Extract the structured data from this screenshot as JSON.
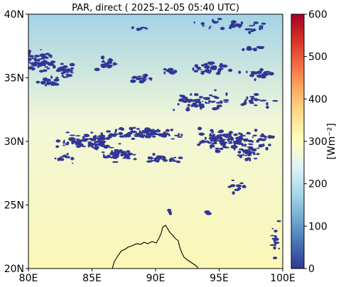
{
  "title": "PAR, direct ( 2025-12-05 05:40 UTC)",
  "map": {
    "lon_range": [
      80,
      100
    ],
    "lat_range": [
      20,
      40
    ],
    "x_ticks": [
      "80E",
      "85E",
      "90E",
      "95E",
      "100E"
    ],
    "y_ticks": [
      "40N",
      "35N",
      "30N",
      "25N",
      "20N"
    ],
    "grid": false
  },
  "colorbar": {
    "label": "[Wm⁻²]",
    "ticks": [
      "600",
      "500",
      "400",
      "300",
      "200",
      "100",
      "0"
    ],
    "range": [
      0,
      600
    ],
    "colormap": "RdYlBu_r",
    "colors": [
      "#313695",
      "#4575b4",
      "#74add1",
      "#abd9e9",
      "#e0f3f8",
      "#ffffbf",
      "#fee090",
      "#fdae61",
      "#f46d43",
      "#d73027",
      "#a50026"
    ]
  },
  "field_colors": {
    "north": "#a3d3e6",
    "middle": "#f1f7d8",
    "south": "#fbf7b6",
    "cloud": "#313695",
    "coastline": "#000000"
  }
}
